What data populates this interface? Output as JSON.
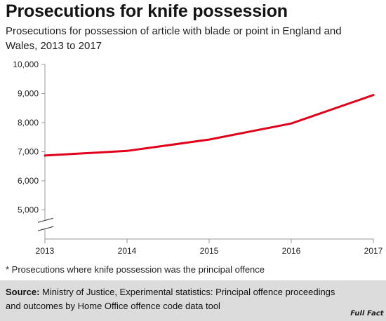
{
  "title": "Prosecutions for knife possession",
  "subtitle": "Prosecutions for possession of article with blade or point in England and Wales, 2013 to 2017",
  "footnote": "* Prosecutions where knife possession was the principal offence",
  "source": {
    "label": "Source:",
    "text": "Ministry of Justice, Experimental statistics: Principal offence proceedings and outcomes by Home Office offence code data tool"
  },
  "logo_text": "Full Fact",
  "colors": {
    "line": "#e2001a",
    "axis": "#999999",
    "source_bg": "#dcdcdc"
  },
  "chart_data": {
    "type": "line",
    "x": [
      2013,
      2014,
      2015,
      2016,
      2017
    ],
    "x_tick_labels": [
      "2013",
      "2014",
      "2015",
      "2016",
      "2017"
    ],
    "series": [
      {
        "values": [
          6870,
          7030,
          7420,
          7970,
          8950
        ]
      }
    ],
    "y_ticks": [
      5000,
      6000,
      7000,
      8000,
      9000,
      10000
    ],
    "y_tick_labels": [
      "5,000",
      "6,000",
      "7,000",
      "8,000",
      "9,000",
      "10,000"
    ],
    "ylim": [
      4000,
      10000
    ],
    "axis_break": true,
    "grid": false,
    "xlabel": "",
    "ylabel": ""
  }
}
